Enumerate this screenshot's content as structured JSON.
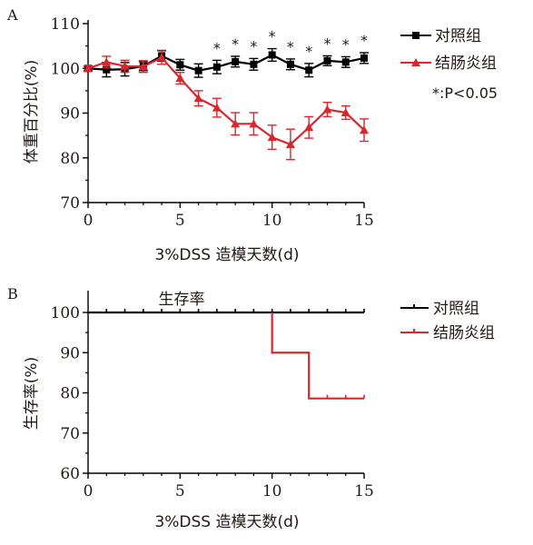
{
  "chart_data": [
    {
      "panel_label": "A",
      "type": "line",
      "title": "",
      "xlabel": "3%DSS 造模天数(d)",
      "ylabel": "体重百分比(%)",
      "xlim": [
        0,
        15
      ],
      "ylim": [
        70,
        110
      ],
      "x_ticks": [
        "0",
        "5",
        "10",
        "15"
      ],
      "y_ticks": [
        "70",
        "80",
        "90",
        "100",
        "110"
      ],
      "grid": false,
      "legend_position": "top-right",
      "significance_note": "*:P<0.05",
      "significance_marker": "*",
      "series": [
        {
          "name": "对照组",
          "color": "#000000",
          "marker": "square",
          "x": [
            0,
            1,
            2,
            3,
            4,
            5,
            6,
            7,
            8,
            9,
            10,
            11,
            12,
            13,
            14,
            15
          ],
          "y": [
            100,
            99.7,
            99.8,
            100.5,
            102.8,
            100.8,
            99.5,
            100.3,
            101.5,
            100.9,
            103,
            100.9,
            99.6,
            101.7,
            101.4,
            102.3
          ],
          "err": [
            0.5,
            1.6,
            1.5,
            1.0,
            1.2,
            1.2,
            1.5,
            1.5,
            1.2,
            1.3,
            1.4,
            1.2,
            1.5,
            1.1,
            1.2,
            1.2
          ]
        },
        {
          "name": "结肠炎组",
          "color": "#d7282f",
          "marker": "triangle",
          "x": [
            0,
            1,
            2,
            3,
            4,
            5,
            6,
            7,
            8,
            9,
            10,
            11,
            12,
            13,
            14,
            15
          ],
          "y": [
            100,
            101.4,
            100.5,
            100.4,
            102.4,
            97.8,
            93.3,
            91.2,
            87.6,
            87.6,
            84.6,
            83,
            86.8,
            90.8,
            90.1,
            86.2
          ],
          "err": [
            0.6,
            1.3,
            1.3,
            1.3,
            1.5,
            1.3,
            1.7,
            2.1,
            2.5,
            2.5,
            2.7,
            3.4,
            2.4,
            1.6,
            1.5,
            2.5
          ]
        }
      ],
      "significant_x": [
        7,
        8,
        9,
        10,
        11,
        12,
        13,
        14,
        15
      ]
    },
    {
      "panel_label": "B",
      "type": "line",
      "title": "生存率",
      "xlabel": "3%DSS 造模天数(d)",
      "ylabel": "生存率(%)",
      "xlim": [
        0,
        15
      ],
      "ylim": [
        60,
        100
      ],
      "x_ticks": [
        "0",
        "5",
        "10",
        "15"
      ],
      "y_ticks": [
        "60",
        "70",
        "80",
        "90",
        "100"
      ],
      "grid": false,
      "legend_position": "top-right",
      "series": [
        {
          "name": "对照组",
          "color": "#000000",
          "style": "step",
          "x": [
            0,
            15
          ],
          "y": [
            100,
            100
          ]
        },
        {
          "name": "结肠炎组",
          "color": "#d7282f",
          "style": "step",
          "x": [
            10,
            10,
            12,
            12,
            15
          ],
          "y": [
            100,
            90,
            90,
            78.6,
            78.6
          ]
        }
      ],
      "censor_x": [
        1,
        2,
        3,
        4,
        5,
        6,
        7,
        8,
        9,
        10,
        11,
        12,
        13,
        14,
        15
      ]
    }
  ]
}
